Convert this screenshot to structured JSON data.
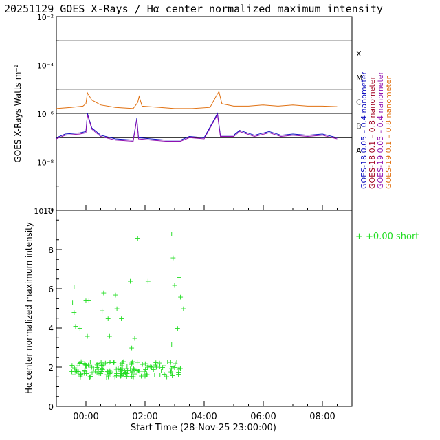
{
  "page_title": "20251129 GOES X-Rays / Hα center normalized maximum intensity",
  "chart_data": [
    {
      "type": "line",
      "ylabel": "GOES X-Rays Watts m⁻²",
      "y_scale": "log",
      "ylim": [
        1e-10,
        0.01
      ],
      "y_tick_labels": [
        "10⁻¹⁰",
        "10⁻⁸",
        "10⁻⁶",
        "10⁻⁴",
        "10⁻²"
      ],
      "flare_class_labels": [
        "A",
        "B",
        "C",
        "M",
        "X"
      ],
      "grid": "horizontal lines at each decade from 10⁻⁸ to 10⁻³",
      "series": [
        {
          "name": "GOES-18 0.05 – 0.4 nanometer",
          "color": "#1010c0"
        },
        {
          "name": "GOES-18 0.1 – 0.8 nanometer",
          "color": "#a00020"
        },
        {
          "name": "GOES-19 0.05 – 0.4 nanometer",
          "color": "#9010b0"
        },
        {
          "name": "GOES-19 0.1 – 0.8 nanometer",
          "color": "#e07010"
        }
      ],
      "legend_placement": "right, vertical"
    },
    {
      "type": "scatter",
      "ylabel": "Hα center normalized maximum intensity",
      "ylim": [
        0,
        10
      ],
      "y_tick_labels": [
        "0",
        "2",
        "4",
        "6",
        "8",
        "10"
      ],
      "xlabel": "Start Time (28-Nov-25 23:00:00)",
      "x_tick_labels": [
        "00:00",
        "02:00",
        "04:00",
        "06:00",
        "08:00"
      ],
      "series": [
        {
          "name": "+0.00 short",
          "marker": "+",
          "color": "#22dd22"
        }
      ],
      "legend_placement": "right"
    }
  ]
}
